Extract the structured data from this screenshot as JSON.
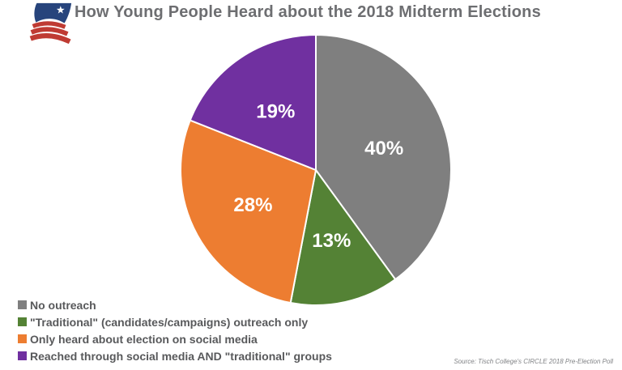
{
  "header": {
    "title": "How Young People Heard about the 2018 Midterm Elections",
    "logo_icon": "flag-with-star-logo"
  },
  "chart_data": {
    "type": "pie",
    "title": "How Young People Heard about the 2018 Midterm Elections",
    "start_angle_deg": 0,
    "direction": "clockwise",
    "legend_position": "bottom-left",
    "data_label_color": "#FFFFFF",
    "slices": [
      {
        "id": "no-outreach",
        "label": "No outreach",
        "value": 40,
        "display": "40%",
        "color": "#7F7F7F"
      },
      {
        "id": "traditional-only",
        "label": "\"Traditional\" (candidates/campaigns) outreach only",
        "value": 13,
        "display": "13%",
        "color": "#548235"
      },
      {
        "id": "social-media-only",
        "label": "Only heard about election on social media",
        "value": 28,
        "display": "28%",
        "color": "#ED7D31"
      },
      {
        "id": "social-and-traditional",
        "label": "Reached through social media AND \"traditional\" groups",
        "value": 19,
        "display": "19%",
        "color": "#7030A0"
      }
    ]
  },
  "footer": {
    "source_text": "Source: Tisch College's CIRCLE 2018 Pre-Election Poll"
  },
  "logo_colors": {
    "blue": "#27447C",
    "red": "#BF3B33"
  }
}
